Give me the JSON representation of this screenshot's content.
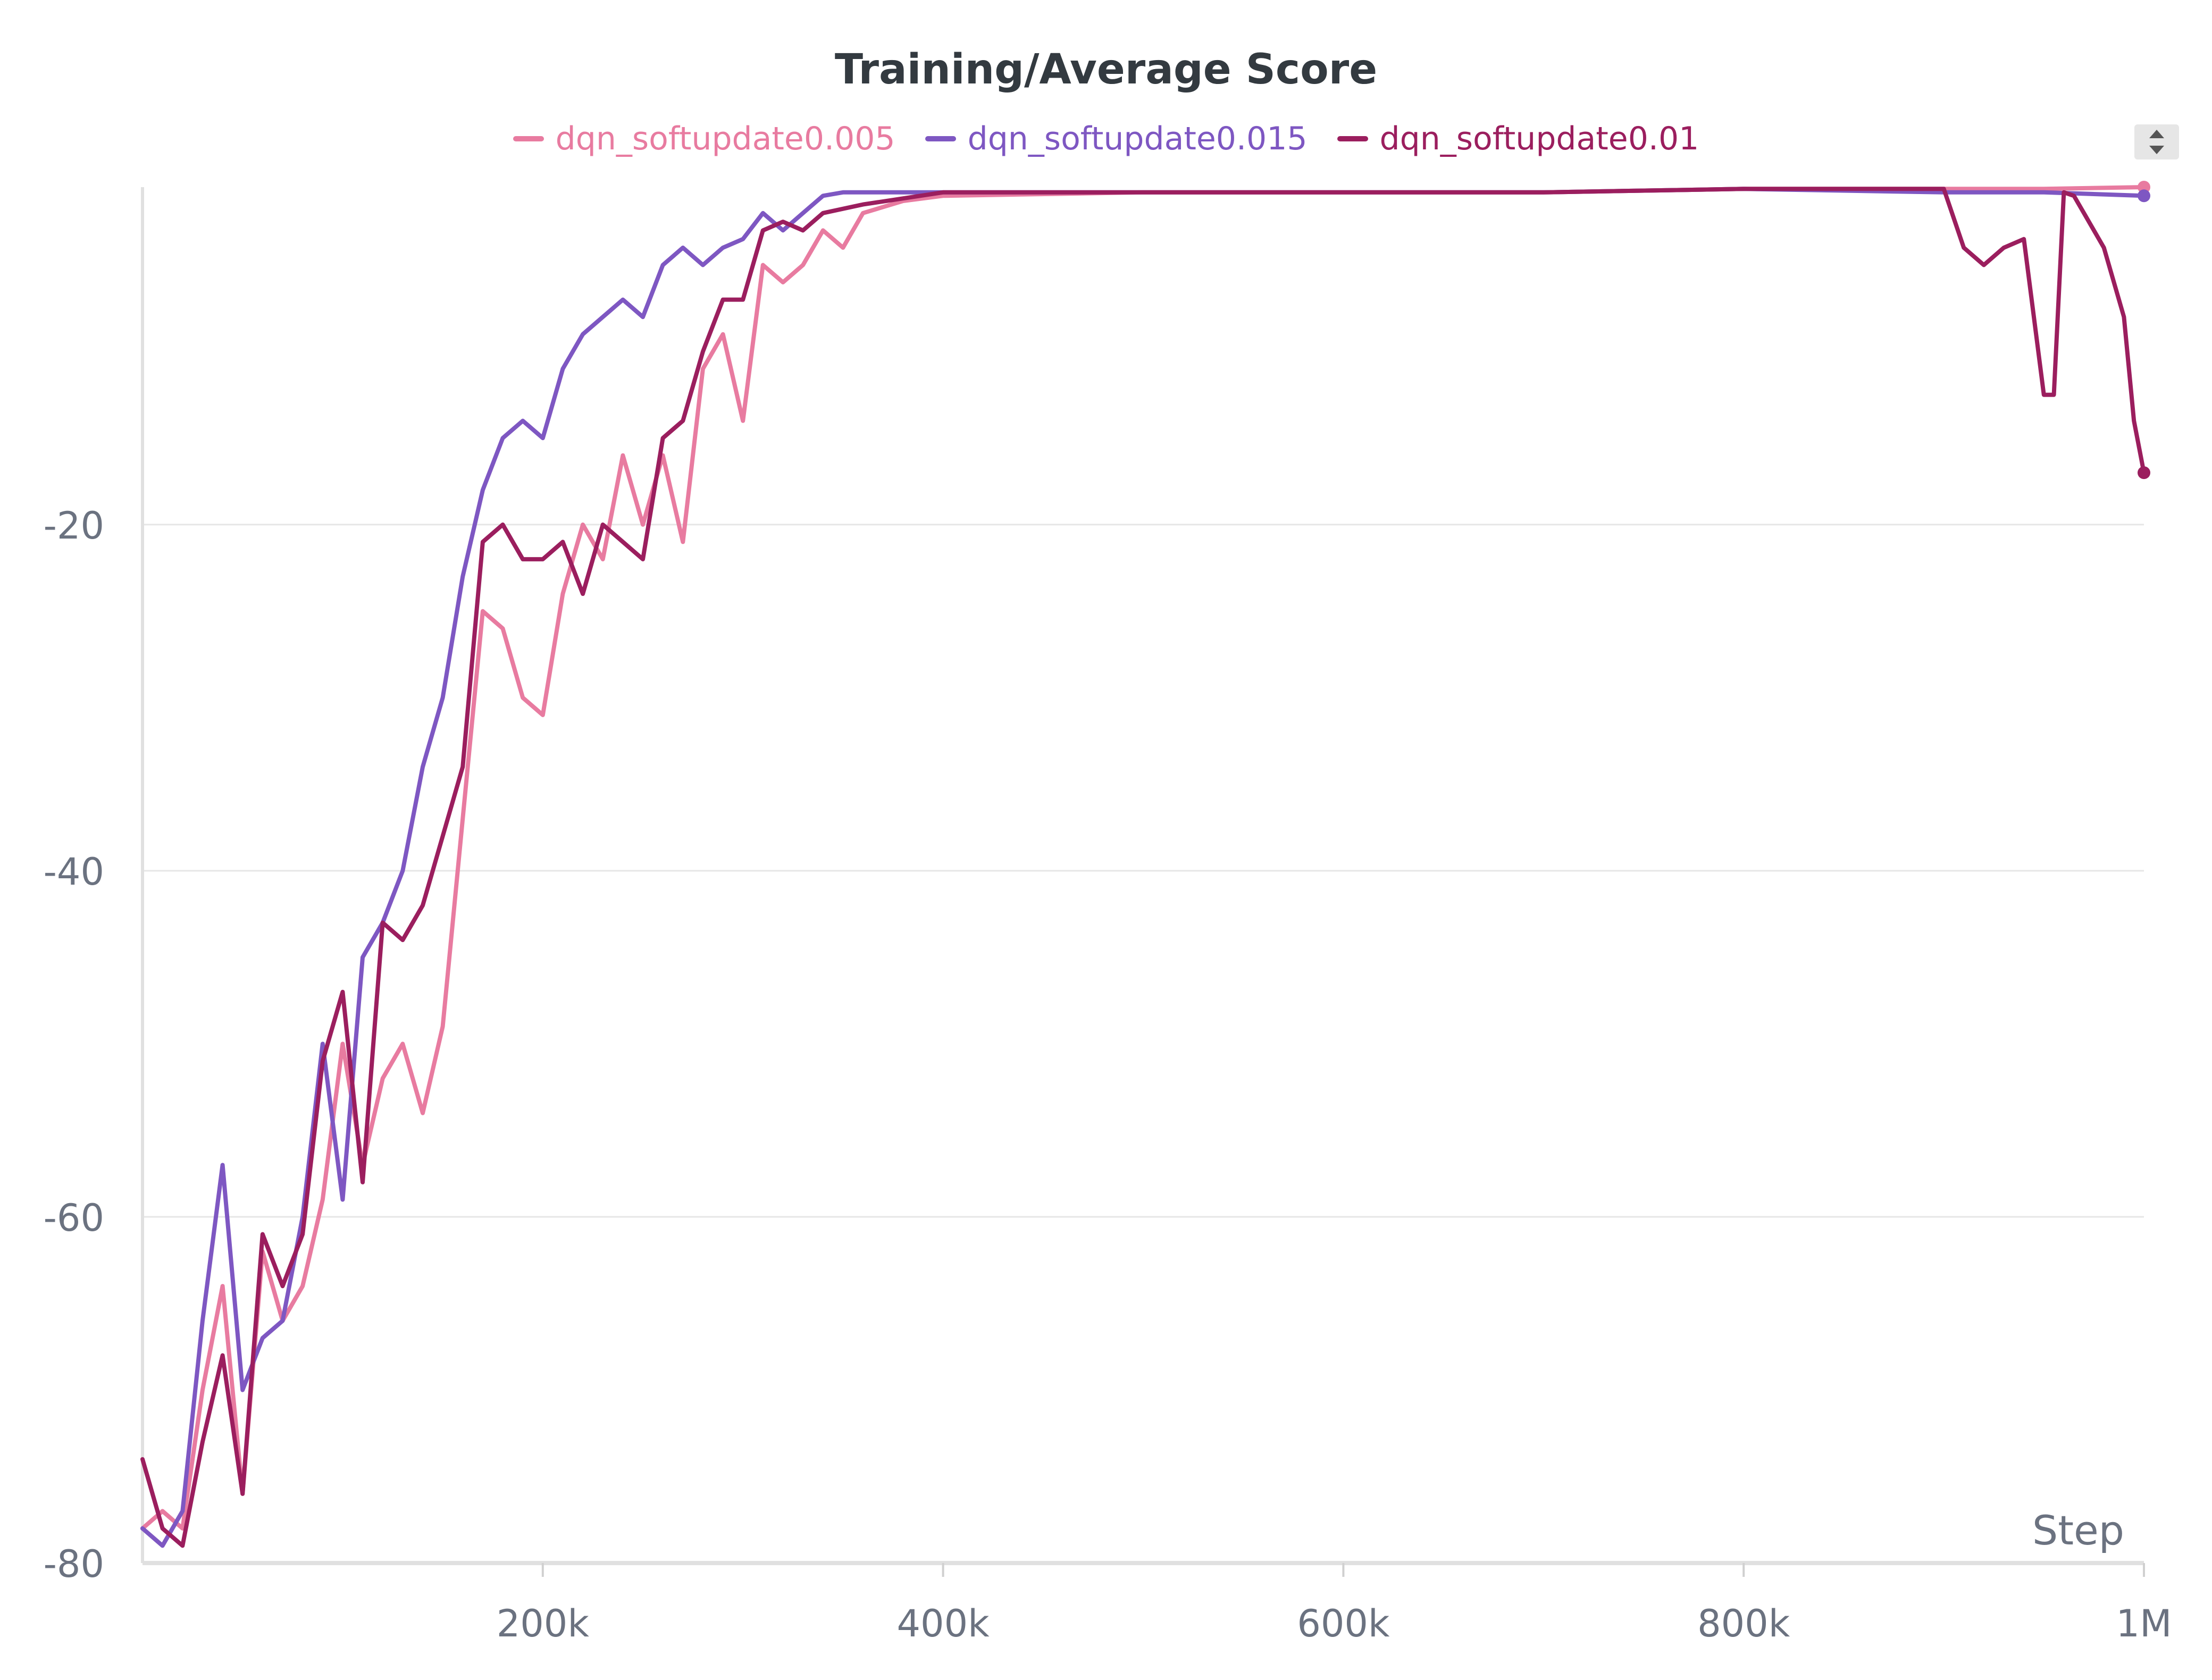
{
  "chart_data": {
    "type": "line",
    "title": "Training/Average Score",
    "xlabel": "Step",
    "ylabel": "",
    "xlim": [
      0,
      1000000
    ],
    "ylim": [
      -80,
      -0.5
    ],
    "x_ticks": [
      200000,
      400000,
      600000,
      800000,
      1000000
    ],
    "x_tick_labels": [
      "200k",
      "400k",
      "600k",
      "800k",
      "1M"
    ],
    "y_ticks": [
      -80,
      -60,
      -40,
      -20
    ],
    "y_tick_labels": [
      "-80",
      "-60",
      "-40",
      "-20"
    ],
    "grid": true,
    "legend_position": "top-center",
    "series": [
      {
        "name": "dqn_softupdate0.005",
        "color": "#e87ba0",
        "x": [
          0,
          10000,
          20000,
          30000,
          40000,
          50000,
          60000,
          70000,
          80000,
          90000,
          100000,
          110000,
          120000,
          130000,
          140000,
          150000,
          160000,
          170000,
          180000,
          190000,
          200000,
          210000,
          220000,
          230000,
          240000,
          250000,
          260000,
          270000,
          280000,
          290000,
          300000,
          310000,
          320000,
          330000,
          340000,
          350000,
          360000,
          380000,
          400000,
          500000,
          600000,
          700000,
          800000,
          900000,
          950000,
          1000000
        ],
        "y": [
          -78,
          -77,
          -78,
          -70,
          -64,
          -76,
          -62,
          -66,
          -64,
          -59,
          -50,
          -57,
          -52,
          -50,
          -54,
          -49,
          -37,
          -25,
          -26,
          -30,
          -31,
          -24,
          -20,
          -22,
          -16,
          -20,
          -16,
          -21,
          -11,
          -9,
          -14,
          -5,
          -6,
          -5,
          -3,
          -4,
          -2,
          -1.3,
          -1,
          -0.8,
          -0.8,
          -0.8,
          -0.6,
          -0.6,
          -0.6,
          -0.5
        ]
      },
      {
        "name": "dqn_softupdate0.015",
        "color": "#7e57c2",
        "x": [
          0,
          10000,
          20000,
          30000,
          40000,
          50000,
          60000,
          70000,
          80000,
          90000,
          100000,
          110000,
          120000,
          130000,
          140000,
          150000,
          160000,
          170000,
          180000,
          190000,
          200000,
          210000,
          220000,
          230000,
          240000,
          250000,
          260000,
          270000,
          280000,
          290000,
          300000,
          310000,
          320000,
          330000,
          340000,
          350000,
          400000,
          500000,
          600000,
          700000,
          800000,
          900000,
          950000,
          1000000
        ],
        "y": [
          -78,
          -79,
          -77,
          -66,
          -57,
          -70,
          -67,
          -66,
          -60,
          -50,
          -59,
          -45,
          -43,
          -40,
          -34,
          -30,
          -23,
          -18,
          -15,
          -14,
          -15,
          -11,
          -9,
          -8,
          -7,
          -8,
          -5,
          -4,
          -5,
          -4,
          -3.5,
          -2,
          -3,
          -2,
          -1,
          -0.8,
          -0.8,
          -0.8,
          -0.8,
          -0.8,
          -0.6,
          -0.8,
          -0.8,
          -1
        ]
      },
      {
        "name": "dqn_softupdate0.01",
        "color": "#9b1e5e",
        "x": [
          0,
          10000,
          20000,
          30000,
          40000,
          50000,
          60000,
          70000,
          80000,
          90000,
          100000,
          110000,
          120000,
          130000,
          140000,
          150000,
          160000,
          170000,
          180000,
          190000,
          200000,
          210000,
          220000,
          230000,
          240000,
          250000,
          260000,
          270000,
          280000,
          290000,
          300000,
          310000,
          320000,
          330000,
          340000,
          360000,
          400000,
          500000,
          600000,
          700000,
          800000,
          900000,
          910000,
          920000,
          930000,
          940000,
          950000,
          955000,
          960000,
          965000,
          970000,
          980000,
          990000,
          995000,
          1000000
        ],
        "y": [
          -74,
          -78,
          -79,
          -73,
          -68,
          -76,
          -61,
          -64,
          -61,
          -51,
          -47,
          -58,
          -43,
          -44,
          -42,
          -38,
          -34,
          -21,
          -20,
          -22,
          -22,
          -21,
          -24,
          -20,
          -21,
          -22,
          -15,
          -14,
          -10,
          -7,
          -7,
          -3,
          -2.5,
          -3,
          -2,
          -1.5,
          -0.8,
          -0.8,
          -0.8,
          -0.8,
          -0.6,
          -0.6,
          -4,
          -5,
          -4,
          -3.5,
          -12.5,
          -12.5,
          -0.8,
          -1,
          -2,
          -4,
          -8,
          -14,
          -17
        ]
      }
    ]
  },
  "ui": {
    "scroll_icon": "up-down-arrows-icon"
  }
}
